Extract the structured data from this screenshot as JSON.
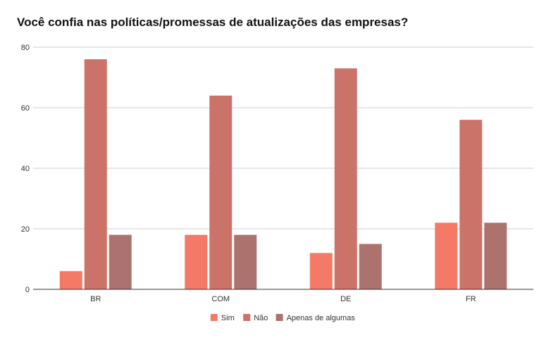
{
  "chart_data": {
    "type": "bar",
    "title": "Você confia nas políticas/promessas de atualizações das empresas?",
    "xlabel": "",
    "ylabel": "",
    "categories": [
      "BR",
      "COM",
      "DE",
      "FR"
    ],
    "series": [
      {
        "name": "Sim",
        "color": "#f47a67",
        "values": [
          6,
          18,
          12,
          22
        ]
      },
      {
        "name": "Não",
        "color": "#cc7369",
        "values": [
          76,
          64,
          73,
          56
        ]
      },
      {
        "name": "Apenas de algumas",
        "color": "#ac726e",
        "values": [
          18,
          18,
          15,
          22
        ]
      }
    ],
    "ylim": [
      0,
      80
    ],
    "yticks": [
      0,
      20,
      40,
      60,
      80
    ],
    "grid": true,
    "legend_position": "bottom"
  }
}
